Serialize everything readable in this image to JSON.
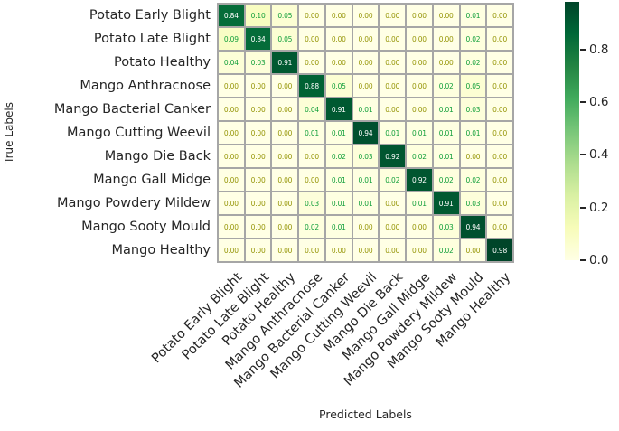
{
  "chart_data": {
    "type": "heatmap",
    "xlabel": "Predicted Labels",
    "ylabel": "True Labels",
    "categories": [
      "Potato Early Blight",
      "Potato Late Blight",
      "Potato Healthy",
      "Mango Anthracnose",
      "Mango Bacterial Canker",
      "Mango Cutting Weevil",
      "Mango Die Back",
      "Mango Gall Midge",
      "Mango Powdery Mildew",
      "Mango Sooty Mould",
      "Mango Healthy"
    ],
    "matrix": [
      [
        0.84,
        0.1,
        0.05,
        0.0,
        0.0,
        0.0,
        0.0,
        0.0,
        0.0,
        0.01,
        0.0
      ],
      [
        0.09,
        0.84,
        0.05,
        0.0,
        0.0,
        0.0,
        0.0,
        0.0,
        0.0,
        0.02,
        0.0
      ],
      [
        0.04,
        0.03,
        0.91,
        0.0,
        0.0,
        0.0,
        0.0,
        0.0,
        0.0,
        0.02,
        0.0
      ],
      [
        0.0,
        0.0,
        0.0,
        0.88,
        0.05,
        0.0,
        0.0,
        0.0,
        0.02,
        0.05,
        0.0
      ],
      [
        0.0,
        0.0,
        0.0,
        0.04,
        0.91,
        0.01,
        0.0,
        0.0,
        0.01,
        0.03,
        0.0
      ],
      [
        0.0,
        0.0,
        0.0,
        0.01,
        0.01,
        0.94,
        0.01,
        0.01,
        0.01,
        0.01,
        0.0
      ],
      [
        0.0,
        0.0,
        0.0,
        0.0,
        0.02,
        0.03,
        0.92,
        0.02,
        0.01,
        0.0,
        0.0
      ],
      [
        0.0,
        0.0,
        0.0,
        0.0,
        0.01,
        0.01,
        0.02,
        0.92,
        0.02,
        0.02,
        0.0
      ],
      [
        0.0,
        0.0,
        0.0,
        0.03,
        0.01,
        0.01,
        0.0,
        0.01,
        0.91,
        0.03,
        0.0
      ],
      [
        0.0,
        0.0,
        0.0,
        0.02,
        0.01,
        0.0,
        0.0,
        0.0,
        0.03,
        0.94,
        0.0
      ],
      [
        0.0,
        0.0,
        0.0,
        0.0,
        0.0,
        0.0,
        0.0,
        0.0,
        0.02,
        0.0,
        0.98
      ]
    ],
    "value_decimals": 2,
    "vmin": 0.0,
    "vmax": 0.98,
    "colorbar": {
      "tick_labels": [
        "0.0",
        "0.2",
        "0.4",
        "0.6",
        "0.8"
      ],
      "tick_values": [
        0.0,
        0.2,
        0.4,
        0.6,
        0.8
      ],
      "position": "right"
    },
    "colormap": {
      "name": "YlGn",
      "stops": [
        "#ffffe5",
        "#f7fcb9",
        "#d9f0a3",
        "#addd8e",
        "#78c679",
        "#41ab5d",
        "#238443",
        "#006837",
        "#004529"
      ]
    },
    "grid_color": "#a6a6a6",
    "annotation_colors": {
      "zero": "#97970a",
      "low": "#14a03c",
      "high": "#ffffff"
    },
    "background": "#ffffff"
  }
}
